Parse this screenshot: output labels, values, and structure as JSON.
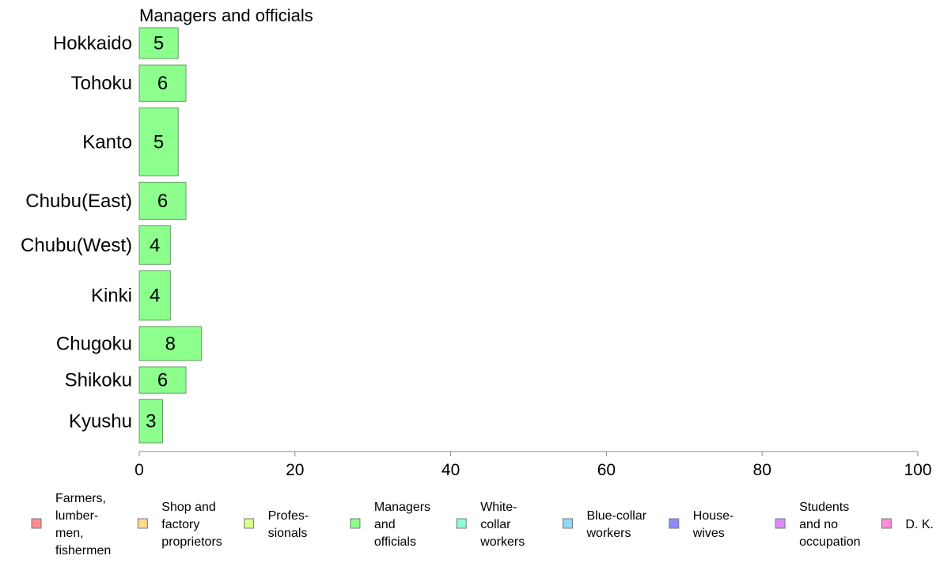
{
  "chart_data": {
    "type": "bar",
    "orientation": "horizontal",
    "title": "Managers and officials",
    "categories": [
      "Hokkaido",
      "Tohoku",
      "Kanto",
      "Chubu(East)",
      "Chubu(West)",
      "Kinki",
      "Chugoku",
      "Shikoku",
      "Kyushu"
    ],
    "relative_bar_thickness": [
      1,
      1.18,
      2.2,
      1.2,
      1.25,
      1.6,
      1.1,
      0.85,
      1.4
    ],
    "series": [
      {
        "name": "Managers and officials",
        "values": [
          5,
          6,
          5,
          6,
          4,
          4,
          8,
          6,
          3
        ],
        "value_labels": [
          "5",
          "6",
          "5",
          "6",
          "4",
          "4",
          "8",
          "6",
          "3"
        ],
        "color": "#8cff8c"
      }
    ],
    "xlim": [
      0,
      100
    ],
    "xticks": [
      0,
      20,
      40,
      60,
      80,
      100
    ],
    "xtick_labels": [
      "0",
      "20",
      "40",
      "60",
      "80",
      "100"
    ],
    "grid": false,
    "legend_position": "bottom",
    "legend": [
      {
        "lines": [
          "Farmers,",
          "lumber-",
          "men,",
          "fishermen"
        ],
        "color": "#ff8c8c"
      },
      {
        "lines": [
          "Shop and",
          "factory",
          "proprietors"
        ],
        "color": "#ffd98c"
      },
      {
        "lines": [
          "Profes-",
          "sionals"
        ],
        "color": "#d9ff8c"
      },
      {
        "lines": [
          "Managers",
          "and",
          "officials"
        ],
        "color": "#8cff8c"
      },
      {
        "lines": [
          "White-",
          "collar",
          "workers"
        ],
        "color": "#8cffd9"
      },
      {
        "lines": [
          "Blue-collar",
          "workers"
        ],
        "color": "#8cd9ff"
      },
      {
        "lines": [
          "House-",
          "wives"
        ],
        "color": "#8c8cff"
      },
      {
        "lines": [
          "Students",
          "and no",
          "occupation"
        ],
        "color": "#d98cff"
      },
      {
        "lines": [
          "D. K."
        ],
        "color": "#ff8cd9"
      }
    ]
  }
}
